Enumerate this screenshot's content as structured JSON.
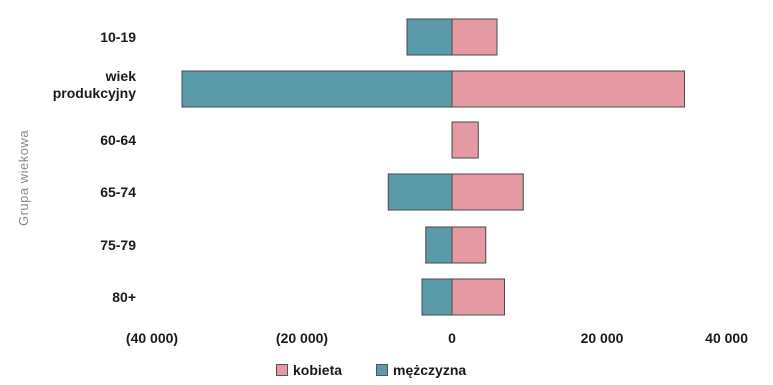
{
  "chart_data": {
    "type": "bar",
    "orientation": "horizontal",
    "stacked": true,
    "categories": [
      "10-19",
      "wiek produkcyjny",
      "60-64",
      "65-74",
      "75-79",
      "80+"
    ],
    "series": [
      {
        "name": "kobieta",
        "color": "#e59aa3",
        "values": [
          6000,
          31000,
          3500,
          9500,
          4500,
          7000
        ]
      },
      {
        "name": "mężczyzna",
        "color": "#5a9aa9",
        "values": [
          -6000,
          -36000,
          0,
          -8500,
          -3500,
          -4000
        ]
      }
    ],
    "xticks": [
      "(40 000)",
      "(20 000)",
      "0",
      "20 000",
      "40 000"
    ],
    "xtick_values": [
      -40000,
      -20000,
      0,
      20000,
      40000
    ],
    "xlim": [
      -40000,
      40000
    ],
    "ylabel": "Grupa wiekowa",
    "legend_position": "bottom",
    "grid": false
  }
}
